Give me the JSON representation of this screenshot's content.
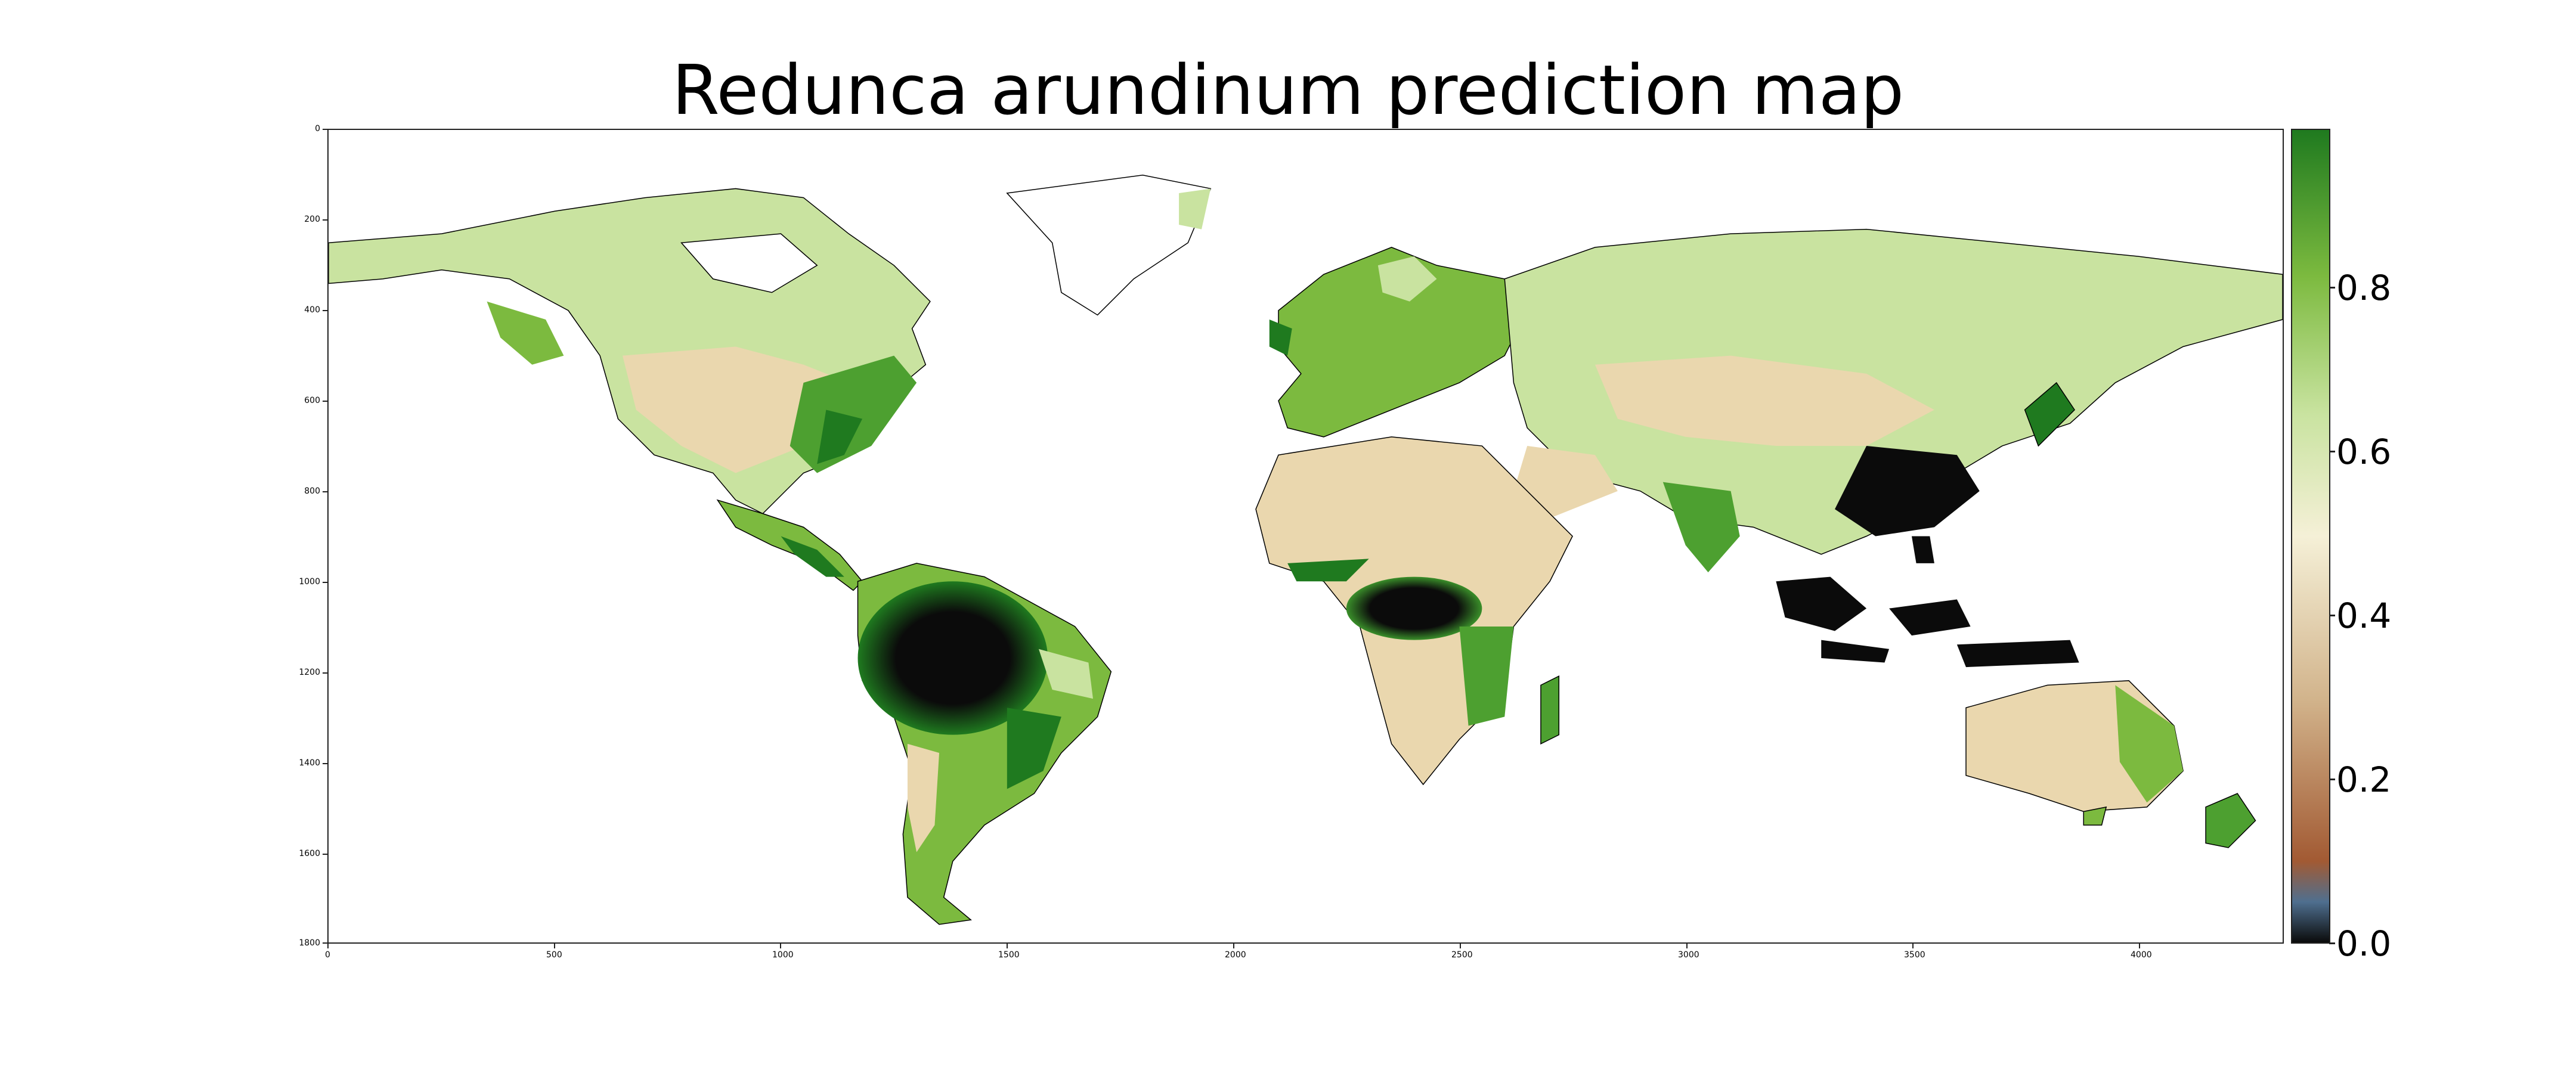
{
  "map": {
    "title": "Redunca arundinum prediction map",
    "x_ticks": [
      "0",
      "500",
      "1000",
      "1500",
      "2000",
      "2500",
      "3000",
      "3500",
      "4000"
    ],
    "y_ticks": [
      "0",
      "200",
      "400",
      "600",
      "800",
      "1000",
      "1200",
      "1400",
      "1600",
      "1800"
    ],
    "x_range": [
      0,
      4320
    ],
    "y_range": [
      0,
      1800
    ],
    "colorbar": {
      "ticks": [
        "0.0",
        "0.2",
        "0.4",
        "0.6",
        "0.8"
      ],
      "range": [
        0.0,
        1.0
      ],
      "colors": {
        "low": "#0b0b0b",
        "blue": "#4f6f8f",
        "brown": "#a25a33",
        "tan": "#d2b48c",
        "cream": "#f5f0d7",
        "light_green": "#c9e3a0",
        "green": "#7cba3f",
        "dark_green": "#1f7a1f"
      }
    },
    "layers": {
      "background": "#ffffff",
      "coastline": "#000000"
    }
  }
}
